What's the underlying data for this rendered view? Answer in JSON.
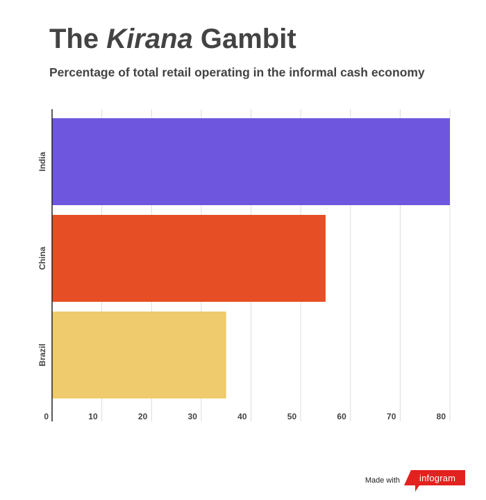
{
  "title": {
    "prefix": "The",
    "italic": "Kirana",
    "suffix": "Gambit"
  },
  "subtitle": "Percentage of total retail operating in the informal cash economy",
  "chart_data": {
    "type": "bar",
    "orientation": "horizontal",
    "categories": [
      "India",
      "China",
      "Brazil"
    ],
    "values": [
      80,
      55,
      35
    ],
    "colors": [
      "#6e57de",
      "#e64f25",
      "#efcb6d"
    ],
    "xlim": [
      0,
      80
    ],
    "xticks": [
      0,
      10,
      20,
      30,
      40,
      50,
      60,
      70,
      80
    ],
    "grid": true
  },
  "footer": {
    "made_with": "Made with",
    "brand": "infogram",
    "brand_color": "#e2221f"
  }
}
